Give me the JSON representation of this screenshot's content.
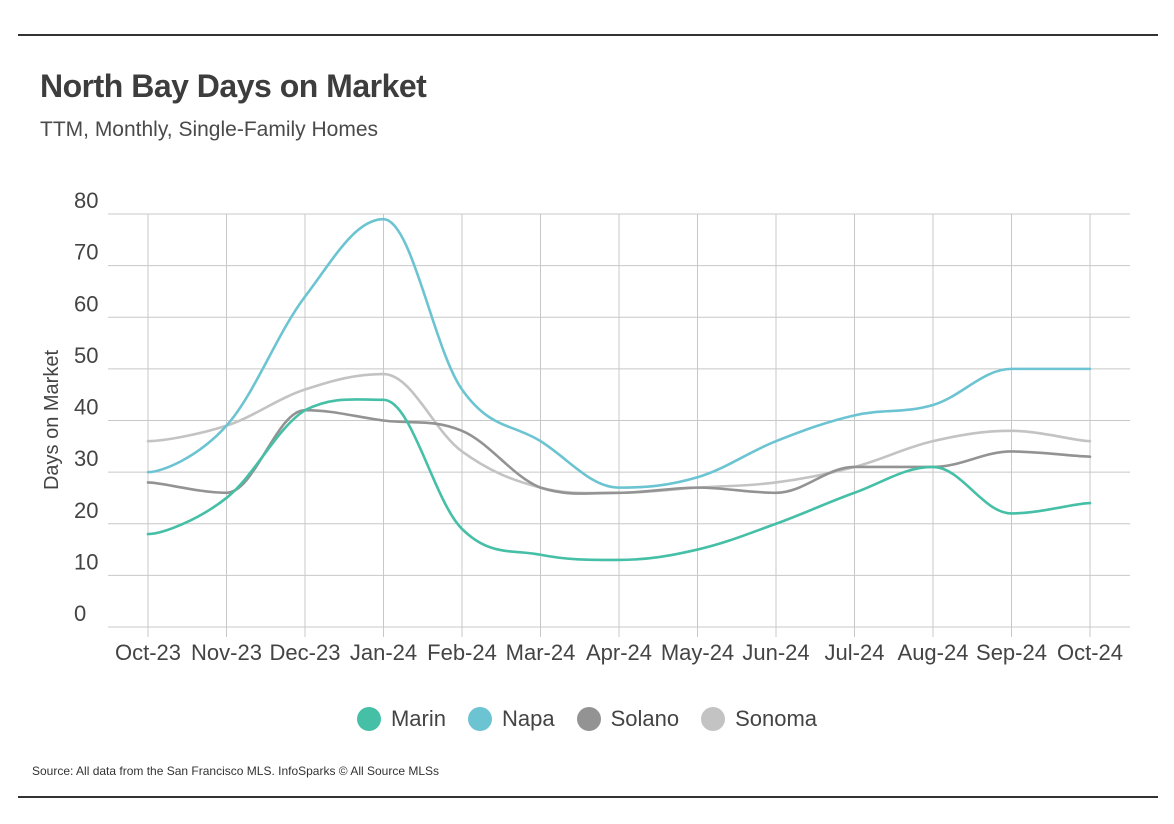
{
  "header": {
    "title": "North Bay Days on Market",
    "subtitle": "TTM, Monthly, Single-Family Homes"
  },
  "footer": {
    "source": "Source:  All data from the San Francisco MLS. InfoSparks © All Source MLSs"
  },
  "chart_data": {
    "type": "line",
    "title": "North Bay Days on Market",
    "subtitle": "TTM, Monthly, Single-Family Homes",
    "xlabel": "",
    "ylabel": "Days on Market",
    "ylim": [
      0,
      80
    ],
    "yticks": [
      0,
      10,
      20,
      30,
      40,
      50,
      60,
      70,
      80
    ],
    "grid": true,
    "legend_position": "bottom",
    "categories": [
      "Oct-23",
      "Nov-23",
      "Dec-23",
      "Jan-24",
      "Feb-24",
      "Mar-24",
      "Apr-24",
      "May-24",
      "Jun-24",
      "Jul-24",
      "Aug-24",
      "Sep-24",
      "Oct-24"
    ],
    "series": [
      {
        "name": "Marin",
        "color": "#45bfa6",
        "values": [
          18,
          25,
          42,
          44,
          19,
          14,
          13,
          15,
          20,
          26,
          31,
          22,
          24
        ]
      },
      {
        "name": "Napa",
        "color": "#6cc4d2",
        "values": [
          30,
          39,
          64,
          79,
          46,
          36,
          27,
          29,
          36,
          41,
          43,
          50,
          50
        ]
      },
      {
        "name": "Solano",
        "color": "#939393",
        "values": [
          28,
          26,
          42,
          40,
          38,
          27,
          26,
          27,
          26,
          31,
          31,
          34,
          33
        ]
      },
      {
        "name": "Sonoma",
        "color": "#c3c3c3",
        "values": [
          36,
          39,
          46,
          49,
          34,
          27,
          26,
          27,
          28,
          31,
          36,
          38,
          36
        ]
      }
    ]
  }
}
